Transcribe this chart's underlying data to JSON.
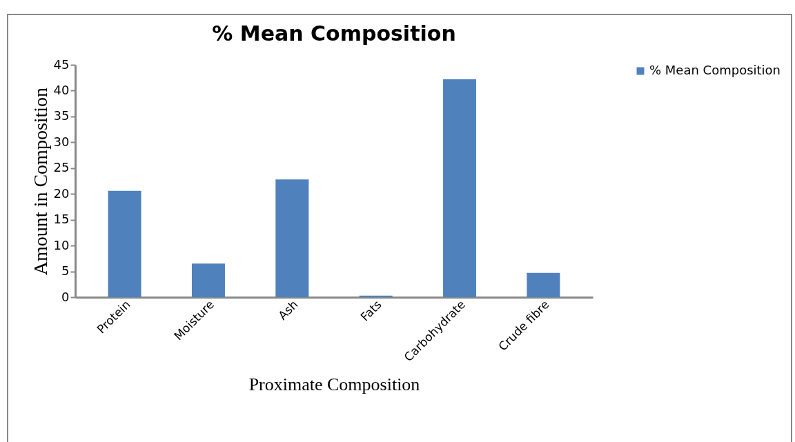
{
  "chart_data": {
    "type": "bar",
    "title": "% Mean Composition",
    "xlabel": "Proximate Composition",
    "ylabel": "Amount in Composition",
    "categories": [
      "Protein",
      "Moisture",
      "Ash",
      "Fats",
      "Carbohydrate",
      "Crude fibre"
    ],
    "series": [
      {
        "name": "% Mean Composition",
        "color": "#4f81bd",
        "values": [
          20.6,
          6.5,
          22.8,
          0.3,
          42.2,
          4.7
        ]
      }
    ],
    "ylim": [
      0,
      45
    ],
    "yticks": [
      0,
      5,
      10,
      15,
      20,
      25,
      30,
      35,
      40,
      45
    ],
    "grid": false,
    "legend": "right"
  }
}
